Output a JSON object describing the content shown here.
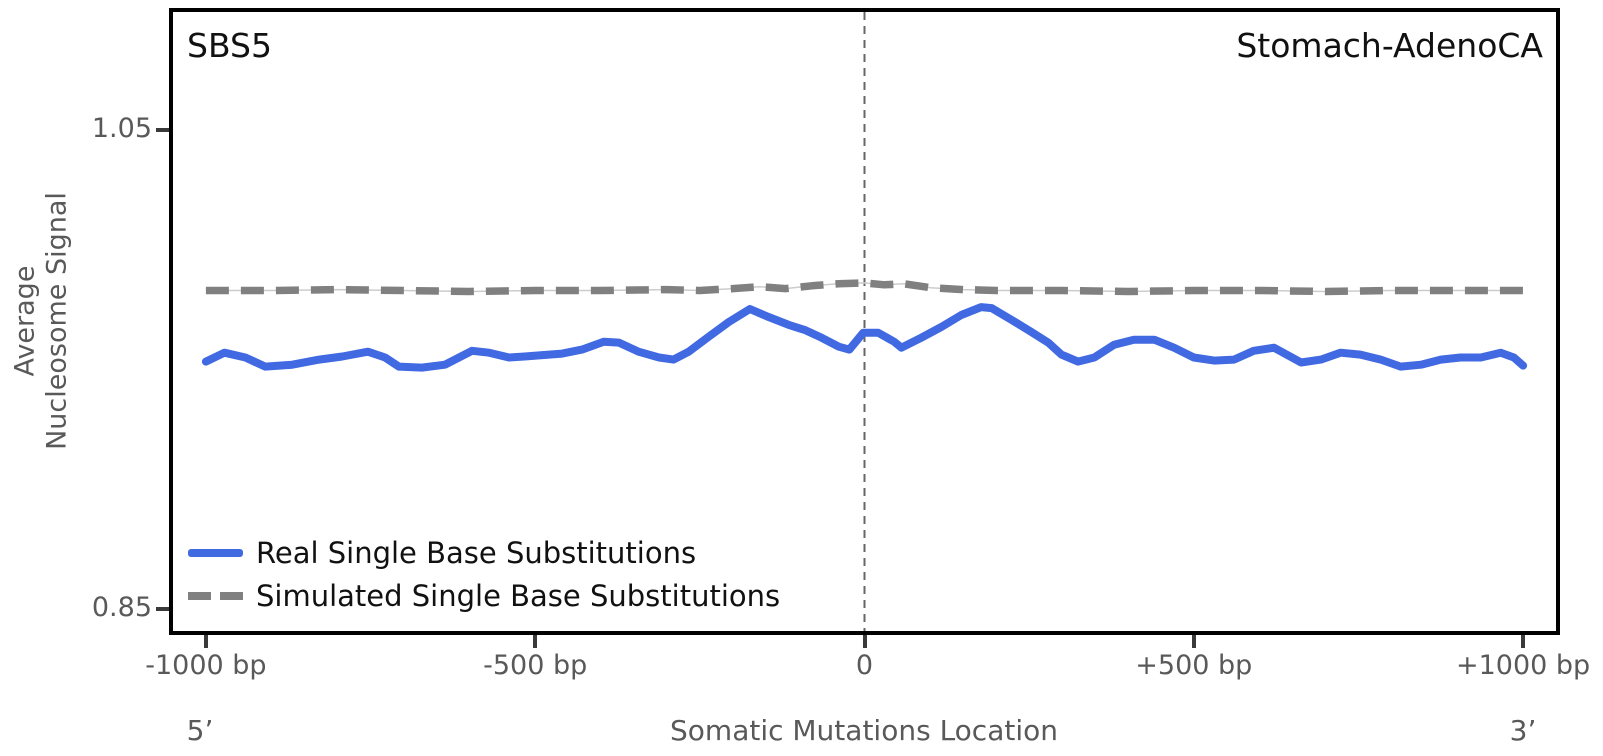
{
  "title_left": "SBS5",
  "title_right": "Stomach-AdenoCA",
  "ylabel_line1": "Average",
  "ylabel_line2": "Nucleosome Signal",
  "xlabel": "Somatic Mutations Location",
  "five_prime_label": "5’",
  "three_prime_label": "3’",
  "legend": {
    "real_label": "Real Single Base Substitutions",
    "simulated_label": "Simulated Single Base Substitutions"
  },
  "colors": {
    "real_line": "#4169E1",
    "simulated_line": "#808080",
    "simulated_connector": "#cccccc",
    "zero_vline": "#666666",
    "axis_text": "#595959",
    "border": "#000000"
  },
  "chart_data": {
    "type": "line",
    "title": "",
    "xlabel": "Somatic Mutations Location",
    "ylabel": "Average Nucleosome Signal",
    "legend_position": "lower left",
    "grid": false,
    "xlim": [
      -1050,
      1050
    ],
    "ylim": [
      0.841,
      1.099
    ],
    "vline_x": 0,
    "xticks": [
      {
        "value": -1000,
        "label": "-1000 bp"
      },
      {
        "value": -500,
        "label": "-500 bp"
      },
      {
        "value": 0,
        "label": "0"
      },
      {
        "value": 500,
        "label": "+500 bp"
      },
      {
        "value": 1000,
        "label": "+1000 bp"
      }
    ],
    "yticks": [
      {
        "value": 1.05,
        "label": "1.05"
      },
      {
        "value": 0.85,
        "label": "0.85"
      }
    ],
    "series": [
      {
        "name": "Real Single Base Substitutions",
        "color": "#4169E1",
        "style": "solid",
        "points": [
          [
            -1000,
            0.9533
          ],
          [
            -972,
            0.957
          ],
          [
            -940,
            0.955
          ],
          [
            -910,
            0.9512
          ],
          [
            -869,
            0.952
          ],
          [
            -828,
            0.9541
          ],
          [
            -793,
            0.9554
          ],
          [
            -754,
            0.9574
          ],
          [
            -728,
            0.955
          ],
          [
            -707,
            0.9512
          ],
          [
            -672,
            0.9508
          ],
          [
            -637,
            0.952
          ],
          [
            -596,
            0.9578
          ],
          [
            -570,
            0.957
          ],
          [
            -540,
            0.955
          ],
          [
            -516,
            0.9554
          ],
          [
            -489,
            0.956
          ],
          [
            -459,
            0.9566
          ],
          [
            -429,
            0.9583
          ],
          [
            -396,
            0.9616
          ],
          [
            -373,
            0.9612
          ],
          [
            -343,
            0.9574
          ],
          [
            -312,
            0.955
          ],
          [
            -290,
            0.9541
          ],
          [
            -267,
            0.9574
          ],
          [
            -237,
            0.9636
          ],
          [
            -206,
            0.9698
          ],
          [
            -174,
            0.9752
          ],
          [
            -146,
            0.9719
          ],
          [
            -115,
            0.9686
          ],
          [
            -91,
            0.9665
          ],
          [
            -65,
            0.9632
          ],
          [
            -39,
            0.9595
          ],
          [
            -23,
            0.9583
          ],
          [
            -2,
            0.9653
          ],
          [
            21,
            0.9653
          ],
          [
            45,
            0.9616
          ],
          [
            56,
            0.9591
          ],
          [
            86,
            0.9632
          ],
          [
            117,
            0.9678
          ],
          [
            147,
            0.9727
          ],
          [
            177,
            0.976
          ],
          [
            193,
            0.9756
          ],
          [
            223,
            0.9707
          ],
          [
            253,
            0.9657
          ],
          [
            279,
            0.9612
          ],
          [
            299,
            0.9562
          ],
          [
            324,
            0.9533
          ],
          [
            349,
            0.955
          ],
          [
            379,
            0.9603
          ],
          [
            409,
            0.9624
          ],
          [
            440,
            0.9624
          ],
          [
            470,
            0.9591
          ],
          [
            500,
            0.955
          ],
          [
            531,
            0.9537
          ],
          [
            561,
            0.9541
          ],
          [
            591,
            0.9578
          ],
          [
            622,
            0.9591
          ],
          [
            663,
            0.9529
          ],
          [
            693,
            0.9541
          ],
          [
            723,
            0.957
          ],
          [
            753,
            0.9562
          ],
          [
            784,
            0.9541
          ],
          [
            814,
            0.9512
          ],
          [
            845,
            0.952
          ],
          [
            875,
            0.9541
          ],
          [
            905,
            0.955
          ],
          [
            936,
            0.955
          ],
          [
            966,
            0.957
          ],
          [
            986,
            0.955
          ],
          [
            1000,
            0.9516
          ]
        ]
      },
      {
        "name": "Simulated Single Base Substitutions",
        "color": "#808080",
        "style": "dashed",
        "points": [
          [
            -1000,
            0.9829
          ],
          [
            -900,
            0.9829
          ],
          [
            -800,
            0.9833
          ],
          [
            -700,
            0.9829
          ],
          [
            -600,
            0.9825
          ],
          [
            -500,
            0.9829
          ],
          [
            -400,
            0.9829
          ],
          [
            -300,
            0.9833
          ],
          [
            -250,
            0.9829
          ],
          [
            -200,
            0.9837
          ],
          [
            -160,
            0.9845
          ],
          [
            -120,
            0.9837
          ],
          [
            -80,
            0.9849
          ],
          [
            -40,
            0.9857
          ],
          [
            0,
            0.9861
          ],
          [
            30,
            0.9853
          ],
          [
            60,
            0.9857
          ],
          [
            100,
            0.9841
          ],
          [
            150,
            0.9833
          ],
          [
            200,
            0.9829
          ],
          [
            300,
            0.9829
          ],
          [
            400,
            0.9825
          ],
          [
            500,
            0.9829
          ],
          [
            600,
            0.9829
          ],
          [
            700,
            0.9825
          ],
          [
            800,
            0.9829
          ],
          [
            900,
            0.9829
          ],
          [
            1000,
            0.9829
          ]
        ]
      }
    ]
  }
}
